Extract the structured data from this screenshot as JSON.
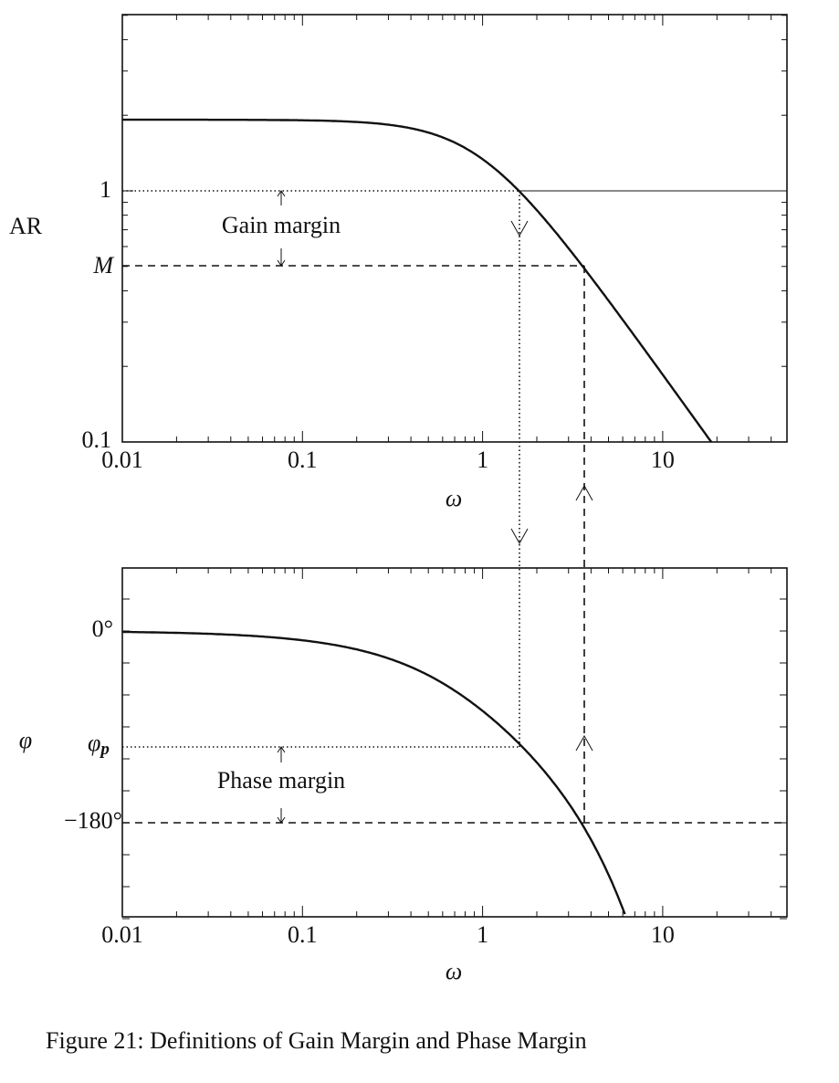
{
  "top_plot": {
    "y_label": "AR",
    "y_ticks": [
      "1",
      "0.1"
    ],
    "margin_level": "M",
    "annotation": "Gain margin",
    "x_ticks": [
      "0.01",
      "0.1",
      "1",
      "10"
    ],
    "x_label": "ω"
  },
  "bottom_plot": {
    "y_label": "φ",
    "y_ticks": [
      "0°",
      "−180°"
    ],
    "margin_level": "φ",
    "margin_level_sub": "p",
    "annotation": "Phase margin",
    "x_ticks": [
      "0.01",
      "0.1",
      "1",
      "10"
    ],
    "x_label": "ω"
  },
  "caption": "Figure 21: Definitions of Gain Margin and Phase Margin"
}
